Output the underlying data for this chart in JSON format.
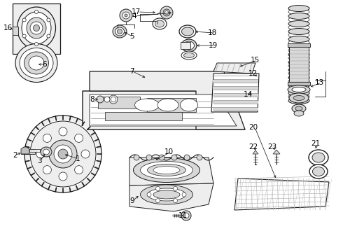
{
  "bg": "white",
  "lc": "#1a1a1a",
  "lc2": "#444444",
  "gray1": "#d8d8d8",
  "gray2": "#eeeeee",
  "gray3": "#c0c0c0",
  "gray4": "#f2f2f2",
  "figsize": [
    4.9,
    3.6
  ],
  "dpi": 100
}
